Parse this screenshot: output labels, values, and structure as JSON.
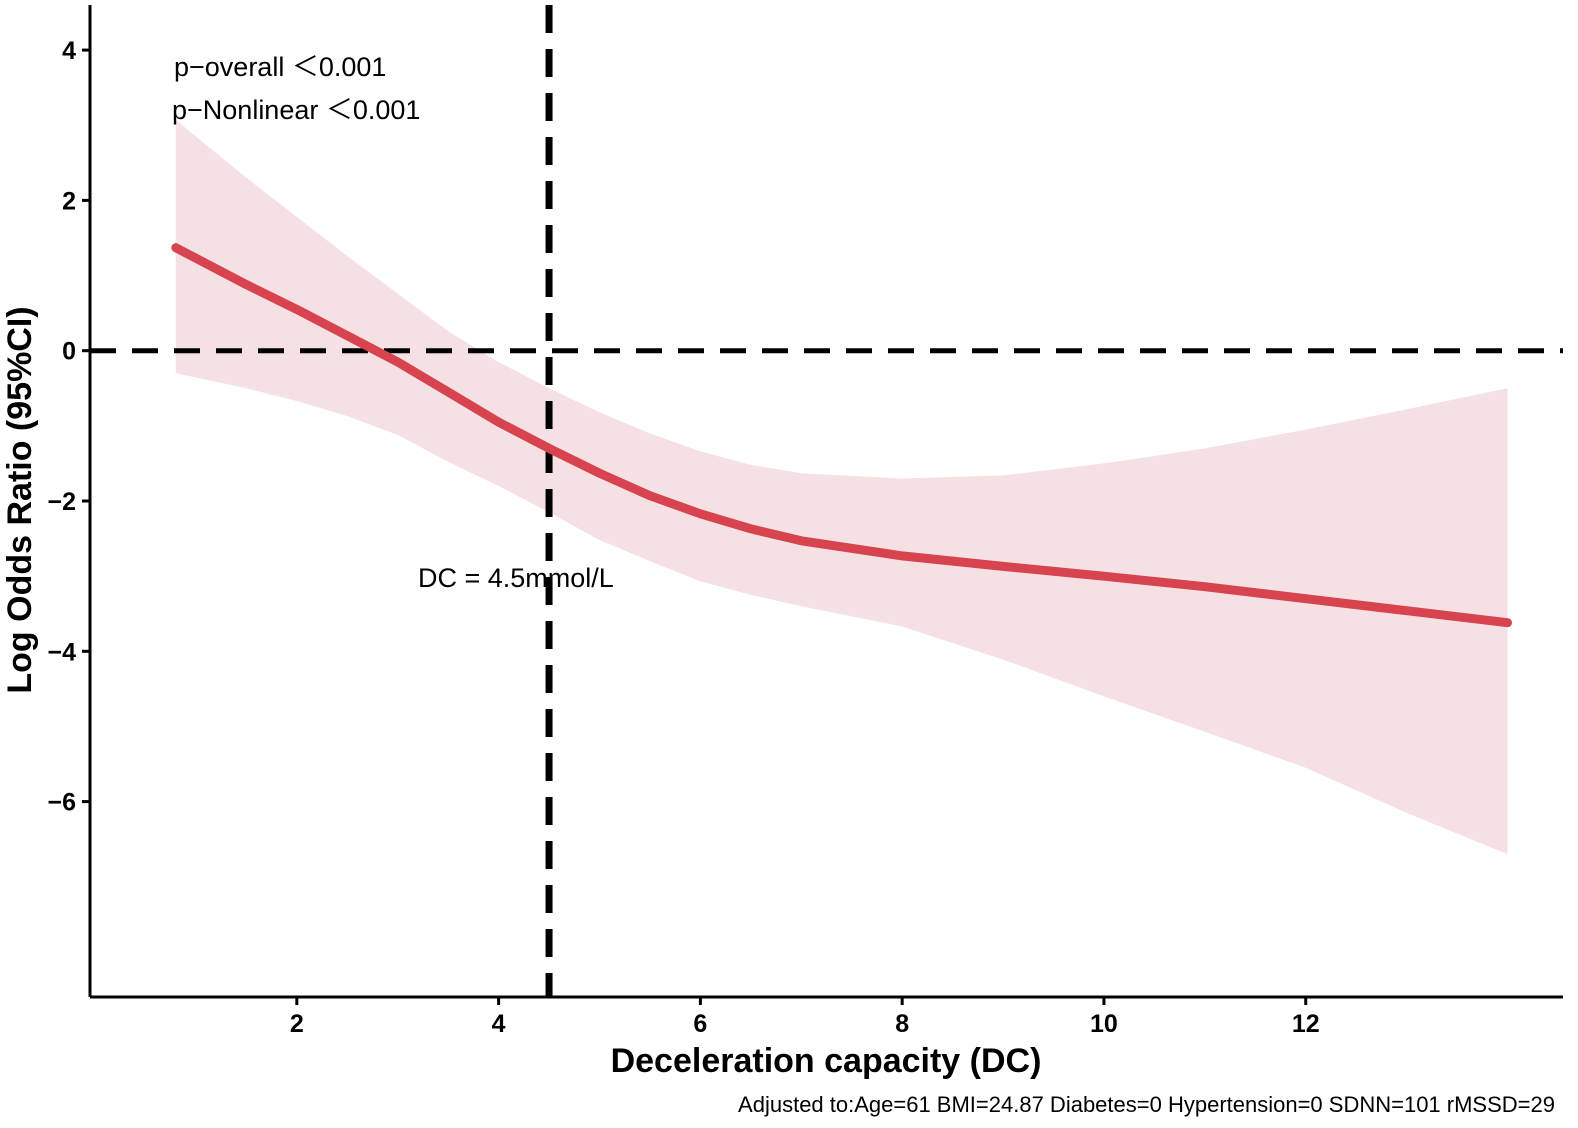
{
  "chart_data": {
    "type": "line",
    "title": "",
    "xlabel": "Deceleration capacity (DC)",
    "ylabel": "Log Odds Ratio (95%CI)",
    "xlim": [
      -0.05,
      14.55
    ],
    "ylim": [
      -8.6,
      4.6
    ],
    "x_ticks": [
      2,
      4,
      6,
      8,
      10,
      12
    ],
    "y_ticks": [
      4,
      2,
      0,
      -2,
      -4,
      -6
    ],
    "series": [
      {
        "name": "Log Odds Ratio",
        "color": "#d7434f",
        "x": [
          0.8,
          1.5,
          2.0,
          2.5,
          3.0,
          3.5,
          4.0,
          4.5,
          5.0,
          5.5,
          6.0,
          6.5,
          7.0,
          8.0,
          9.0,
          10.0,
          11.0,
          12.0,
          13.0,
          14.0
        ],
        "y": [
          1.37,
          0.88,
          0.55,
          0.2,
          -0.15,
          -0.55,
          -0.95,
          -1.3,
          -1.63,
          -1.93,
          -2.17,
          -2.37,
          -2.53,
          -2.73,
          -2.87,
          -3.0,
          -3.14,
          -3.3,
          -3.46,
          -3.62
        ],
        "ci_upper": [
          3.07,
          2.3,
          1.78,
          1.26,
          0.76,
          0.26,
          -0.15,
          -0.5,
          -0.82,
          -1.1,
          -1.34,
          -1.52,
          -1.63,
          -1.7,
          -1.66,
          -1.5,
          -1.3,
          -1.05,
          -0.78,
          -0.5
        ],
        "ci_lower": [
          -0.3,
          -0.5,
          -0.67,
          -0.87,
          -1.12,
          -1.48,
          -1.8,
          -2.15,
          -2.52,
          -2.8,
          -3.07,
          -3.25,
          -3.4,
          -3.67,
          -4.11,
          -4.6,
          -5.07,
          -5.55,
          -6.15,
          -6.7
        ],
        "ci_color": "#f5e1e3"
      }
    ],
    "reference_lines": {
      "horizontal_y": 0,
      "vertical_x": 4.5,
      "color": "#000000",
      "style": "dashed"
    },
    "annotations": {
      "p_overall": "p−overall ＜0.001",
      "p_nonlinear": "p−Nonlinear ＜0.001",
      "cutoff_label": "DC = 4.5mmol/L",
      "adjusted_note": "Adjusted to:Age=61 BMI=24.87 Diabetes=0 Hypertension=0 SDNN=101 rMSSD=29"
    }
  }
}
